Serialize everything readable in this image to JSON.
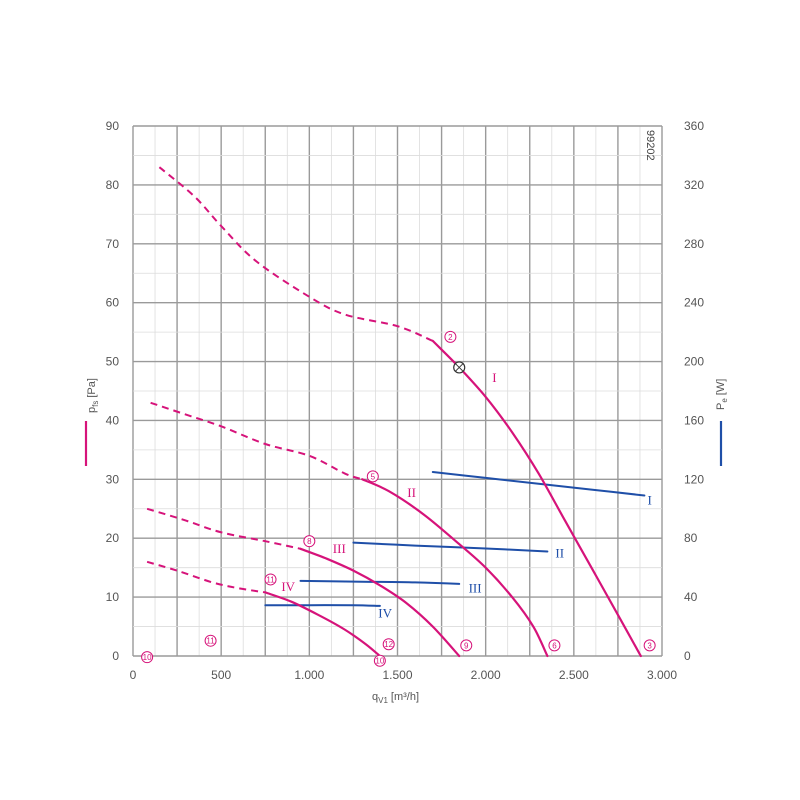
{
  "colors": {
    "pressure": "#d6137a",
    "power": "#1f4fa8",
    "grid": "#a6a6a6",
    "text": "#555555"
  },
  "figure_id": "99202",
  "chart_data": {
    "type": "line",
    "title": "",
    "xlabel": "q",
    "xlabel_sub": "V1",
    "xlabel_unit": "[m³/h]",
    "ylabel_left": "p",
    "ylabel_left_sub": "fs",
    "ylabel_left_unit": "[Pa]",
    "ylabel_right": "P",
    "ylabel_right_sub": "e",
    "ylabel_right_unit": "[W]",
    "xlim": [
      0,
      3000
    ],
    "ylim_left": [
      0,
      90
    ],
    "ylim_right": [
      0,
      360
    ],
    "x_ticks": [
      {
        "v": 0,
        "label": "0"
      },
      {
        "v": 500,
        "label": "500"
      },
      {
        "v": 1000,
        "label": "1.000"
      },
      {
        "v": 1500,
        "label": "1.500"
      },
      {
        "v": 2000,
        "label": "2.000"
      },
      {
        "v": 2500,
        "label": "2.500"
      },
      {
        "v": 3000,
        "label": "3.000"
      }
    ],
    "y_ticks_left": [
      {
        "v": 0,
        "label": "0"
      },
      {
        "v": 10,
        "label": "10"
      },
      {
        "v": 20,
        "label": "20"
      },
      {
        "v": 30,
        "label": "30"
      },
      {
        "v": 40,
        "label": "40"
      },
      {
        "v": 50,
        "label": "50"
      },
      {
        "v": 60,
        "label": "60"
      },
      {
        "v": 70,
        "label": "70"
      },
      {
        "v": 80,
        "label": "80"
      },
      {
        "v": 90,
        "label": "90"
      }
    ],
    "y_ticks_right": [
      {
        "v": 0,
        "label": "0"
      },
      {
        "v": 40,
        "label": "40"
      },
      {
        "v": 80,
        "label": "80"
      },
      {
        "v": 120,
        "label": "120"
      },
      {
        "v": 160,
        "label": "160"
      },
      {
        "v": 200,
        "label": "200"
      },
      {
        "v": 240,
        "label": "240"
      },
      {
        "v": 280,
        "label": "280"
      },
      {
        "v": 320,
        "label": "320"
      },
      {
        "v": 360,
        "label": "360"
      }
    ],
    "grid": true,
    "pressure_curves": [
      {
        "label": "I",
        "dashed": [
          [
            150,
            83
          ],
          [
            350,
            78
          ],
          [
            500,
            73
          ],
          [
            700,
            67
          ],
          [
            1000,
            61
          ],
          [
            1200,
            58
          ],
          [
            1500,
            56
          ],
          [
            1700,
            53.5
          ]
        ],
        "solid": [
          [
            1700,
            53.5
          ],
          [
            1850,
            49
          ],
          [
            2000,
            44
          ],
          [
            2150,
            38
          ],
          [
            2300,
            31
          ],
          [
            2450,
            23
          ],
          [
            2600,
            15
          ],
          [
            2750,
            7
          ],
          [
            2880,
            0
          ]
        ]
      },
      {
        "label": "II",
        "dashed": [
          [
            100,
            43
          ],
          [
            300,
            41
          ],
          [
            500,
            39
          ],
          [
            750,
            36
          ],
          [
            1000,
            34
          ],
          [
            1200,
            31
          ],
          [
            1300,
            30
          ]
        ],
        "solid": [
          [
            1300,
            30
          ],
          [
            1450,
            28
          ],
          [
            1650,
            24
          ],
          [
            1850,
            19
          ],
          [
            2000,
            15
          ],
          [
            2150,
            10
          ],
          [
            2270,
            5
          ],
          [
            2350,
            0
          ]
        ]
      },
      {
        "label": "III",
        "dashed": [
          [
            80,
            25
          ],
          [
            300,
            23
          ],
          [
            500,
            21
          ],
          [
            750,
            19.5
          ],
          [
            950,
            18.2
          ]
        ],
        "solid": [
          [
            950,
            18.2
          ],
          [
            1100,
            16.5
          ],
          [
            1250,
            14.5
          ],
          [
            1400,
            12
          ],
          [
            1550,
            9
          ],
          [
            1700,
            5
          ],
          [
            1850,
            0
          ]
        ]
      },
      {
        "label": "IV",
        "dashed": [
          [
            80,
            16
          ],
          [
            250,
            14.5
          ],
          [
            450,
            12.5
          ],
          [
            600,
            11.5
          ],
          [
            750,
            10.8
          ]
        ],
        "solid": [
          [
            750,
            10.8
          ],
          [
            900,
            9.2
          ],
          [
            1050,
            7
          ],
          [
            1200,
            4.5
          ],
          [
            1320,
            2
          ],
          [
            1400,
            0
          ]
        ]
      }
    ],
    "power_curves": [
      {
        "label": "I",
        "points": [
          [
            1700,
            125
          ],
          [
            2000,
            121
          ],
          [
            2300,
            117
          ],
          [
            2600,
            113
          ],
          [
            2900,
            109
          ]
        ]
      },
      {
        "label": "II",
        "points": [
          [
            1250,
            77
          ],
          [
            1600,
            75
          ],
          [
            2000,
            73
          ],
          [
            2350,
            71
          ]
        ]
      },
      {
        "label": "III",
        "points": [
          [
            950,
            51
          ],
          [
            1300,
            50.5
          ],
          [
            1600,
            50
          ],
          [
            1850,
            49
          ]
        ]
      },
      {
        "label": "IV",
        "points": [
          [
            750,
            34.5
          ],
          [
            1000,
            34.5
          ],
          [
            1250,
            34.5
          ],
          [
            1400,
            34
          ]
        ]
      }
    ],
    "curve_labels_pressure": [
      {
        "text": "I",
        "x": 2050,
        "y": 46.5
      },
      {
        "text": "II",
        "x": 1580,
        "y": 27
      },
      {
        "text": "III",
        "x": 1170,
        "y": 17.5
      },
      {
        "text": "IV",
        "x": 880,
        "y": 11
      }
    ],
    "curve_labels_power": [
      {
        "text": "I",
        "x": 2930,
        "y": 103
      },
      {
        "text": "II",
        "x": 2420,
        "y": 67
      },
      {
        "text": "III",
        "x": 1940,
        "y": 43
      },
      {
        "text": "IV",
        "x": 1430,
        "y": 26
      }
    ],
    "circled_marks": [
      {
        "text": "2",
        "x": 1800,
        "y": 54.2
      },
      {
        "text": "5",
        "x": 1360,
        "y": 30.5
      },
      {
        "text": "8",
        "x": 1000,
        "y": 19.5
      },
      {
        "text": "11",
        "x": 780,
        "y": 13
      },
      {
        "text": "3",
        "x": 2930,
        "y": 1.8
      },
      {
        "text": "6",
        "x": 2390,
        "y": 1.8
      },
      {
        "text": "9",
        "x": 1890,
        "y": 1.8
      },
      {
        "text": "12",
        "x": 1450,
        "y": 2
      },
      {
        "text": "11",
        "x": 440,
        "y": 2.6
      },
      {
        "text": "10",
        "x": 80,
        "y": -0.2
      },
      {
        "text": "10",
        "x": 1400,
        "y": -0.8
      }
    ],
    "operating_point": {
      "x": 1850,
      "y": 49
    }
  }
}
